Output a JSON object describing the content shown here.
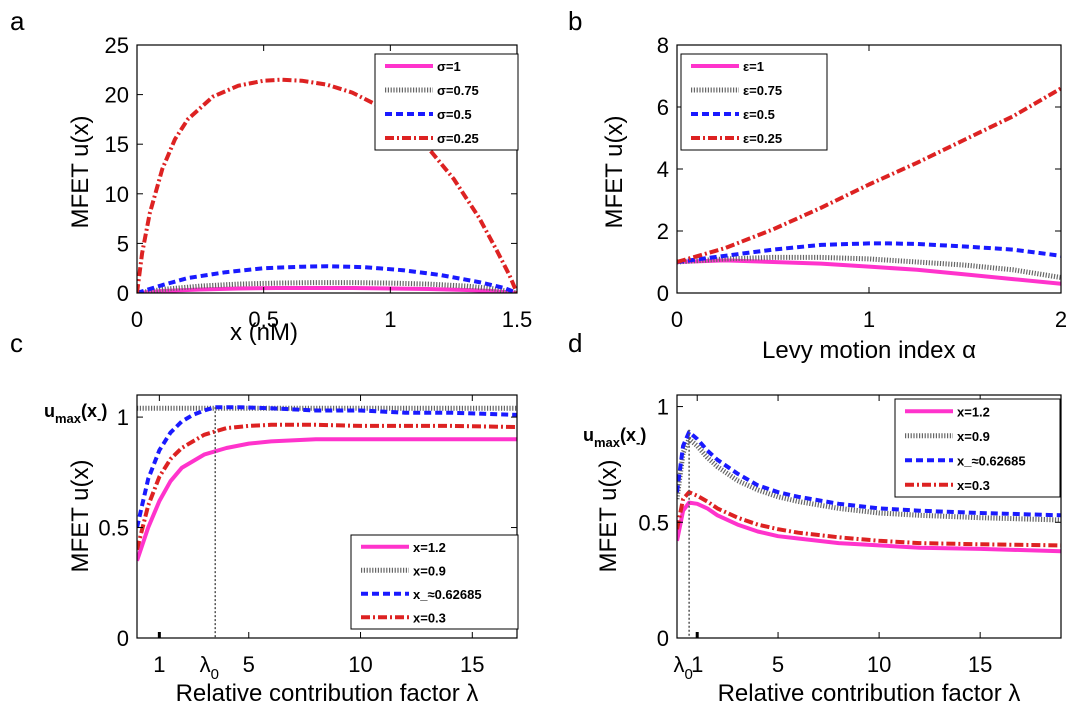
{
  "colors": {
    "s1": "#ff33cc",
    "s2": "#666666",
    "s3": "#1a1aff",
    "s4": "#dd2222"
  },
  "chart_data": [
    {
      "panel": "a",
      "type": "line",
      "xlabel": "x  (nM)",
      "ylabel": "MFET u(x)",
      "xlim": [
        0,
        1.5
      ],
      "ylim": [
        0,
        25
      ],
      "xticks": [
        "0",
        "0.5",
        "1",
        "1.5"
      ],
      "yticks": [
        "0",
        "5",
        "10",
        "15",
        "20",
        "25"
      ],
      "legend_position": "top-right",
      "series": [
        {
          "name": "σ=1",
          "style": "solid",
          "x": [
            0,
            0.1,
            0.25,
            0.4,
            0.55,
            0.7,
            0.85,
            1.0,
            1.15,
            1.3,
            1.4,
            1.5
          ],
          "y": [
            0,
            0.2,
            0.35,
            0.45,
            0.5,
            0.5,
            0.5,
            0.45,
            0.4,
            0.3,
            0.2,
            0
          ]
        },
        {
          "name": "σ=0.75",
          "style": "dotted",
          "x": [
            0,
            0.1,
            0.25,
            0.4,
            0.55,
            0.7,
            0.85,
            1.0,
            1.15,
            1.3,
            1.4,
            1.5
          ],
          "y": [
            0,
            0.35,
            0.7,
            0.9,
            1.0,
            1.05,
            1.05,
            1.0,
            0.9,
            0.7,
            0.45,
            0
          ]
        },
        {
          "name": "σ=0.5",
          "style": "dashed",
          "x": [
            0,
            0.1,
            0.2,
            0.35,
            0.5,
            0.65,
            0.75,
            0.9,
            1.05,
            1.2,
            1.35,
            1.45,
            1.5
          ],
          "y": [
            0,
            0.8,
            1.5,
            2.1,
            2.5,
            2.65,
            2.7,
            2.6,
            2.3,
            1.8,
            1.1,
            0.5,
            0
          ]
        },
        {
          "name": "σ=0.25",
          "style": "dashdot",
          "x": [
            0,
            0.02,
            0.05,
            0.1,
            0.15,
            0.2,
            0.3,
            0.4,
            0.5,
            0.57,
            0.65,
            0.75,
            0.85,
            0.95,
            1.05,
            1.15,
            1.25,
            1.35,
            1.42,
            1.47,
            1.5
          ],
          "y": [
            0,
            4,
            8,
            12.5,
            15.5,
            17.5,
            19.8,
            20.9,
            21.4,
            21.5,
            21.4,
            21.0,
            20.2,
            18.9,
            17.0,
            14.6,
            11.5,
            7.6,
            4.3,
            1.8,
            0
          ]
        }
      ]
    },
    {
      "panel": "b",
      "type": "line",
      "xlabel": "Levy motion index α",
      "ylabel": "MFET u(x)",
      "xlim": [
        0,
        2
      ],
      "ylim": [
        0,
        8
      ],
      "xticks": [
        "0",
        "1",
        "2"
      ],
      "yticks": [
        "0",
        "2",
        "4",
        "6",
        "8"
      ],
      "legend_position": "top-left",
      "series": [
        {
          "name": "ε=1",
          "style": "solid",
          "x": [
            0,
            0.25,
            0.5,
            0.75,
            1.0,
            1.25,
            1.5,
            1.75,
            2.0
          ],
          "y": [
            1.0,
            1.05,
            1.0,
            0.95,
            0.85,
            0.75,
            0.6,
            0.45,
            0.3
          ]
        },
        {
          "name": "ε=0.75",
          "style": "dotted",
          "x": [
            0,
            0.25,
            0.5,
            0.75,
            1.0,
            1.25,
            1.5,
            1.75,
            2.0
          ],
          "y": [
            1.0,
            1.1,
            1.15,
            1.15,
            1.1,
            1.0,
            0.9,
            0.75,
            0.5
          ]
        },
        {
          "name": "ε=0.5",
          "style": "dashed",
          "x": [
            0,
            0.25,
            0.5,
            0.75,
            1.0,
            1.1,
            1.25,
            1.5,
            1.75,
            2.0
          ],
          "y": [
            1.0,
            1.2,
            1.4,
            1.55,
            1.6,
            1.6,
            1.58,
            1.5,
            1.4,
            1.2
          ]
        },
        {
          "name": "ε=0.25",
          "style": "dashdot",
          "x": [
            0,
            0.25,
            0.5,
            0.75,
            1.0,
            1.25,
            1.5,
            1.75,
            2.0
          ],
          "y": [
            1.0,
            1.45,
            2.05,
            2.75,
            3.5,
            4.2,
            4.95,
            5.7,
            6.6
          ]
        }
      ]
    },
    {
      "panel": "c",
      "type": "line",
      "xlabel": "Relative contribution factor λ",
      "ylabel": "MFET u(x)",
      "xlim": [
        0,
        17
      ],
      "ylim": [
        0,
        1.1
      ],
      "xticks": [
        "1",
        "5",
        "10",
        "15"
      ],
      "yticks": [
        "0",
        "0.5",
        "1"
      ],
      "lambda0_marker": {
        "value": 3.5,
        "label": "λ",
        "sub": "0"
      },
      "annotation": {
        "main": "u",
        "sub1": "max",
        "mid": "(x",
        "sub2": "-",
        "end": ")"
      },
      "legend_position": "bottom-right",
      "series": [
        {
          "name": "x=1.2",
          "style": "solid",
          "x": [
            0,
            0.5,
            1,
            1.5,
            2,
            3,
            4,
            5,
            6,
            8,
            10,
            12,
            14,
            17
          ],
          "y": [
            0.35,
            0.5,
            0.62,
            0.71,
            0.77,
            0.83,
            0.86,
            0.88,
            0.89,
            0.9,
            0.9,
            0.9,
            0.9,
            0.9
          ]
        },
        {
          "name": "x=0.9",
          "style": "dotted",
          "x": [
            0,
            17
          ],
          "y": [
            1.04,
            1.04
          ]
        },
        {
          "name": "x_≈0.62685",
          "style": "dashed",
          "x": [
            0,
            0.5,
            1,
            1.5,
            2,
            2.5,
            3,
            3.5,
            4.5,
            6,
            8,
            10,
            12,
            14,
            17
          ],
          "y": [
            0.5,
            0.72,
            0.85,
            0.93,
            0.98,
            1.01,
            1.03,
            1.045,
            1.045,
            1.04,
            1.03,
            1.03,
            1.02,
            1.02,
            1.01
          ]
        },
        {
          "name": "x=0.3",
          "style": "dashdot",
          "x": [
            0,
            0.5,
            1,
            1.5,
            2,
            3,
            4,
            5,
            6,
            8,
            10,
            12,
            14,
            17
          ],
          "y": [
            0.4,
            0.6,
            0.73,
            0.81,
            0.86,
            0.92,
            0.95,
            0.96,
            0.965,
            0.965,
            0.96,
            0.96,
            0.96,
            0.955
          ]
        }
      ]
    },
    {
      "panel": "d",
      "type": "line",
      "xlabel": "Relative contribution factor λ",
      "ylabel": "MFET u(x)",
      "xlim": [
        0,
        19
      ],
      "ylim": [
        0,
        1.05
      ],
      "xticks": [
        "1",
        "5",
        "10",
        "15"
      ],
      "yticks": [
        "0",
        "0.5",
        "1"
      ],
      "lambda0_marker": {
        "value": 0.6,
        "label": "λ",
        "sub": "0"
      },
      "annotation": {
        "main": "u",
        "sub1": "max",
        "mid": "(x",
        "sub2": "-",
        "end": ")"
      },
      "legend_position": "top-right",
      "series": [
        {
          "name": "x=1.2",
          "style": "solid",
          "x": [
            0,
            0.3,
            0.6,
            1,
            1.5,
            2,
            3,
            4,
            5,
            6,
            8,
            10,
            12,
            15,
            19
          ],
          "y": [
            0.42,
            0.55,
            0.585,
            0.58,
            0.56,
            0.53,
            0.49,
            0.46,
            0.44,
            0.43,
            0.41,
            0.4,
            0.39,
            0.385,
            0.375
          ]
        },
        {
          "name": "x=0.9",
          "style": "dotted",
          "x": [
            0,
            0.3,
            0.6,
            1,
            1.5,
            2,
            3,
            4,
            5,
            6,
            8,
            10,
            12,
            15,
            19
          ],
          "y": [
            0.6,
            0.8,
            0.86,
            0.83,
            0.78,
            0.74,
            0.68,
            0.64,
            0.61,
            0.59,
            0.56,
            0.54,
            0.53,
            0.52,
            0.51
          ]
        },
        {
          "name": "x_≈0.62685",
          "style": "dashed",
          "x": [
            0,
            0.3,
            0.6,
            1,
            1.5,
            2,
            3,
            4,
            5,
            6,
            8,
            10,
            12,
            15,
            19
          ],
          "y": [
            0.63,
            0.83,
            0.89,
            0.86,
            0.81,
            0.77,
            0.71,
            0.66,
            0.63,
            0.61,
            0.58,
            0.56,
            0.55,
            0.54,
            0.53
          ]
        },
        {
          "name": "x=0.3",
          "style": "dashdot",
          "x": [
            0,
            0.3,
            0.6,
            1,
            1.5,
            2,
            3,
            4,
            5,
            6,
            8,
            10,
            12,
            15,
            19
          ],
          "y": [
            0.47,
            0.6,
            0.63,
            0.615,
            0.59,
            0.56,
            0.52,
            0.49,
            0.47,
            0.455,
            0.435,
            0.42,
            0.41,
            0.405,
            0.4
          ]
        }
      ]
    }
  ]
}
